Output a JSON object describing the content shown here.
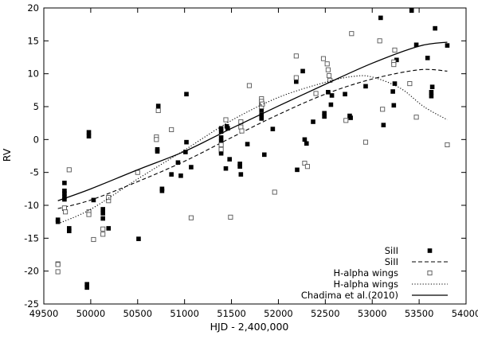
{
  "chart_data": {
    "type": "scatter",
    "xlabel": "HJD - 2,400,000",
    "ylabel": "RV",
    "xlim": [
      49500,
      54000
    ],
    "ylim": [
      -25,
      20
    ],
    "xticks": [
      49500,
      50000,
      50500,
      51000,
      51500,
      52000,
      52500,
      53000,
      53500,
      54000
    ],
    "yticks": [
      -25,
      -20,
      -15,
      -10,
      -5,
      0,
      5,
      10,
      15,
      20
    ],
    "legend_position": "bottom-right",
    "series": [
      {
        "name": "SiII",
        "kind": "points",
        "marker": "filled-square",
        "points": [
          [
            49650,
            -12.2
          ],
          [
            49650,
            -12.5
          ],
          [
            49720,
            -6.6
          ],
          [
            49720,
            -7.8
          ],
          [
            49720,
            -8.2
          ],
          [
            49720,
            -8.7
          ],
          [
            49720,
            -9.1
          ],
          [
            49720,
            -10.5
          ],
          [
            49770,
            -13.5
          ],
          [
            49770,
            -13.9
          ],
          [
            49960,
            -22.0
          ],
          [
            49960,
            -22.5
          ],
          [
            49980,
            0.5
          ],
          [
            49980,
            1.1
          ],
          [
            50030,
            -9.2
          ],
          [
            50130,
            -10.6
          ],
          [
            50130,
            -11.2
          ],
          [
            50130,
            -12.0
          ],
          [
            50190,
            -13.5
          ],
          [
            50510,
            -15.1
          ],
          [
            50710,
            -1.5
          ],
          [
            50710,
            -1.8
          ],
          [
            50720,
            5.1
          ],
          [
            50760,
            -7.5
          ],
          [
            50760,
            -7.8
          ],
          [
            50860,
            -5.3
          ],
          [
            50930,
            -3.5
          ],
          [
            50960,
            -5.5
          ],
          [
            51010,
            -1.9
          ],
          [
            51020,
            6.9
          ],
          [
            51020,
            -0.4
          ],
          [
            51070,
            -4.2
          ],
          [
            51390,
            1.7
          ],
          [
            51390,
            1.2
          ],
          [
            51390,
            0.3
          ],
          [
            51390,
            -0.3
          ],
          [
            51390,
            -1.3
          ],
          [
            51390,
            -1.8
          ],
          [
            51390,
            -2.1
          ],
          [
            51440,
            -4.4
          ],
          [
            51450,
            2.0
          ],
          [
            51460,
            1.7
          ],
          [
            51480,
            -3.0
          ],
          [
            51590,
            -3.7
          ],
          [
            51590,
            -4.1
          ],
          [
            51600,
            -5.3
          ],
          [
            51670,
            -0.7
          ],
          [
            51820,
            5.5
          ],
          [
            51820,
            4.5
          ],
          [
            51820,
            3.8
          ],
          [
            51820,
            3.2
          ],
          [
            51850,
            -2.3
          ],
          [
            51940,
            1.6
          ],
          [
            52190,
            8.8
          ],
          [
            52200,
            -4.6
          ],
          [
            52260,
            10.4
          ],
          [
            52280,
            0.0
          ],
          [
            52300,
            -0.6
          ],
          [
            52370,
            2.7
          ],
          [
            52490,
            4.0
          ],
          [
            52490,
            3.5
          ],
          [
            52530,
            7.2
          ],
          [
            52560,
            5.3
          ],
          [
            52570,
            6.7
          ],
          [
            52710,
            6.9
          ],
          [
            52760,
            3.6
          ],
          [
            52770,
            3.3
          ],
          [
            52930,
            8.1
          ],
          [
            53090,
            18.5
          ],
          [
            53120,
            2.2
          ],
          [
            53220,
            7.3
          ],
          [
            53230,
            5.2
          ],
          [
            53240,
            8.5
          ],
          [
            53260,
            12.1
          ],
          [
            53420,
            19.6
          ],
          [
            53470,
            14.4
          ],
          [
            53590,
            12.4
          ],
          [
            53630,
            6.6
          ],
          [
            53630,
            7.2
          ],
          [
            53640,
            8.0
          ],
          [
            53670,
            16.9
          ],
          [
            53800,
            14.3
          ]
        ]
      },
      {
        "name": "SiII",
        "kind": "line",
        "style": "dashed",
        "points": [
          [
            49650,
            -10.5
          ],
          [
            50000,
            -9.2
          ],
          [
            50500,
            -6.4
          ],
          [
            51000,
            -3.3
          ],
          [
            51500,
            0.3
          ],
          [
            52000,
            3.8
          ],
          [
            52500,
            6.9
          ],
          [
            53000,
            9.2
          ],
          [
            53500,
            10.6
          ],
          [
            53800,
            10.4
          ]
        ]
      },
      {
        "name": "H-alpha wings",
        "kind": "points",
        "marker": "open-square",
        "points": [
          [
            49650,
            -18.9
          ],
          [
            49650,
            -19.0
          ],
          [
            49650,
            -20.1
          ],
          [
            49720,
            -10.4
          ],
          [
            49730,
            -11.0
          ],
          [
            49770,
            -4.6
          ],
          [
            49980,
            -11.0
          ],
          [
            49980,
            -11.4
          ],
          [
            50030,
            -15.2
          ],
          [
            50130,
            -13.6
          ],
          [
            50130,
            -14.4
          ],
          [
            50190,
            -9.3
          ],
          [
            50190,
            -8.8
          ],
          [
            50500,
            -5.0
          ],
          [
            50700,
            0.4
          ],
          [
            50700,
            0.0
          ],
          [
            50720,
            4.4
          ],
          [
            50860,
            1.5
          ],
          [
            51070,
            -11.9
          ],
          [
            51390,
            -0.8
          ],
          [
            51390,
            -1.5
          ],
          [
            51440,
            3.0
          ],
          [
            51490,
            -11.8
          ],
          [
            51600,
            2.7
          ],
          [
            51600,
            1.9
          ],
          [
            51610,
            1.3
          ],
          [
            51690,
            8.2
          ],
          [
            51820,
            6.2
          ],
          [
            51820,
            5.8
          ],
          [
            51820,
            5.0
          ],
          [
            51830,
            5.4
          ],
          [
            51960,
            -8.0
          ],
          [
            52190,
            12.7
          ],
          [
            52190,
            9.4
          ],
          [
            52280,
            -3.6
          ],
          [
            52310,
            -4.1
          ],
          [
            52400,
            7.0
          ],
          [
            52480,
            12.3
          ],
          [
            52520,
            11.5
          ],
          [
            52530,
            10.6
          ],
          [
            52540,
            9.7
          ],
          [
            52550,
            9.0
          ],
          [
            52720,
            2.9
          ],
          [
            52780,
            16.1
          ],
          [
            52930,
            -0.4
          ],
          [
            53080,
            15.0
          ],
          [
            53110,
            4.6
          ],
          [
            53230,
            11.8
          ],
          [
            53230,
            11.4
          ],
          [
            53240,
            13.6
          ],
          [
            53400,
            8.5
          ],
          [
            53470,
            3.4
          ],
          [
            53800,
            -0.8
          ]
        ]
      },
      {
        "name": "H-alpha wings",
        "kind": "line",
        "style": "dotted",
        "points": [
          [
            49650,
            -12.8
          ],
          [
            50000,
            -10.6
          ],
          [
            50500,
            -6.0
          ],
          [
            51000,
            -1.6
          ],
          [
            51500,
            2.9
          ],
          [
            52000,
            6.4
          ],
          [
            52500,
            8.7
          ],
          [
            52800,
            9.6
          ],
          [
            53000,
            9.5
          ],
          [
            53300,
            7.8
          ],
          [
            53550,
            5.0
          ],
          [
            53800,
            3.0
          ]
        ]
      },
      {
        "name": "Chadima et al.(2010)",
        "kind": "line",
        "style": "solid",
        "points": [
          [
            49650,
            -9.3
          ],
          [
            50000,
            -7.5
          ],
          [
            50500,
            -4.6
          ],
          [
            51000,
            -1.8
          ],
          [
            51500,
            1.7
          ],
          [
            52000,
            5.1
          ],
          [
            52500,
            8.4
          ],
          [
            53000,
            11.6
          ],
          [
            53500,
            14.2
          ],
          [
            53800,
            14.8
          ]
        ]
      }
    ]
  }
}
